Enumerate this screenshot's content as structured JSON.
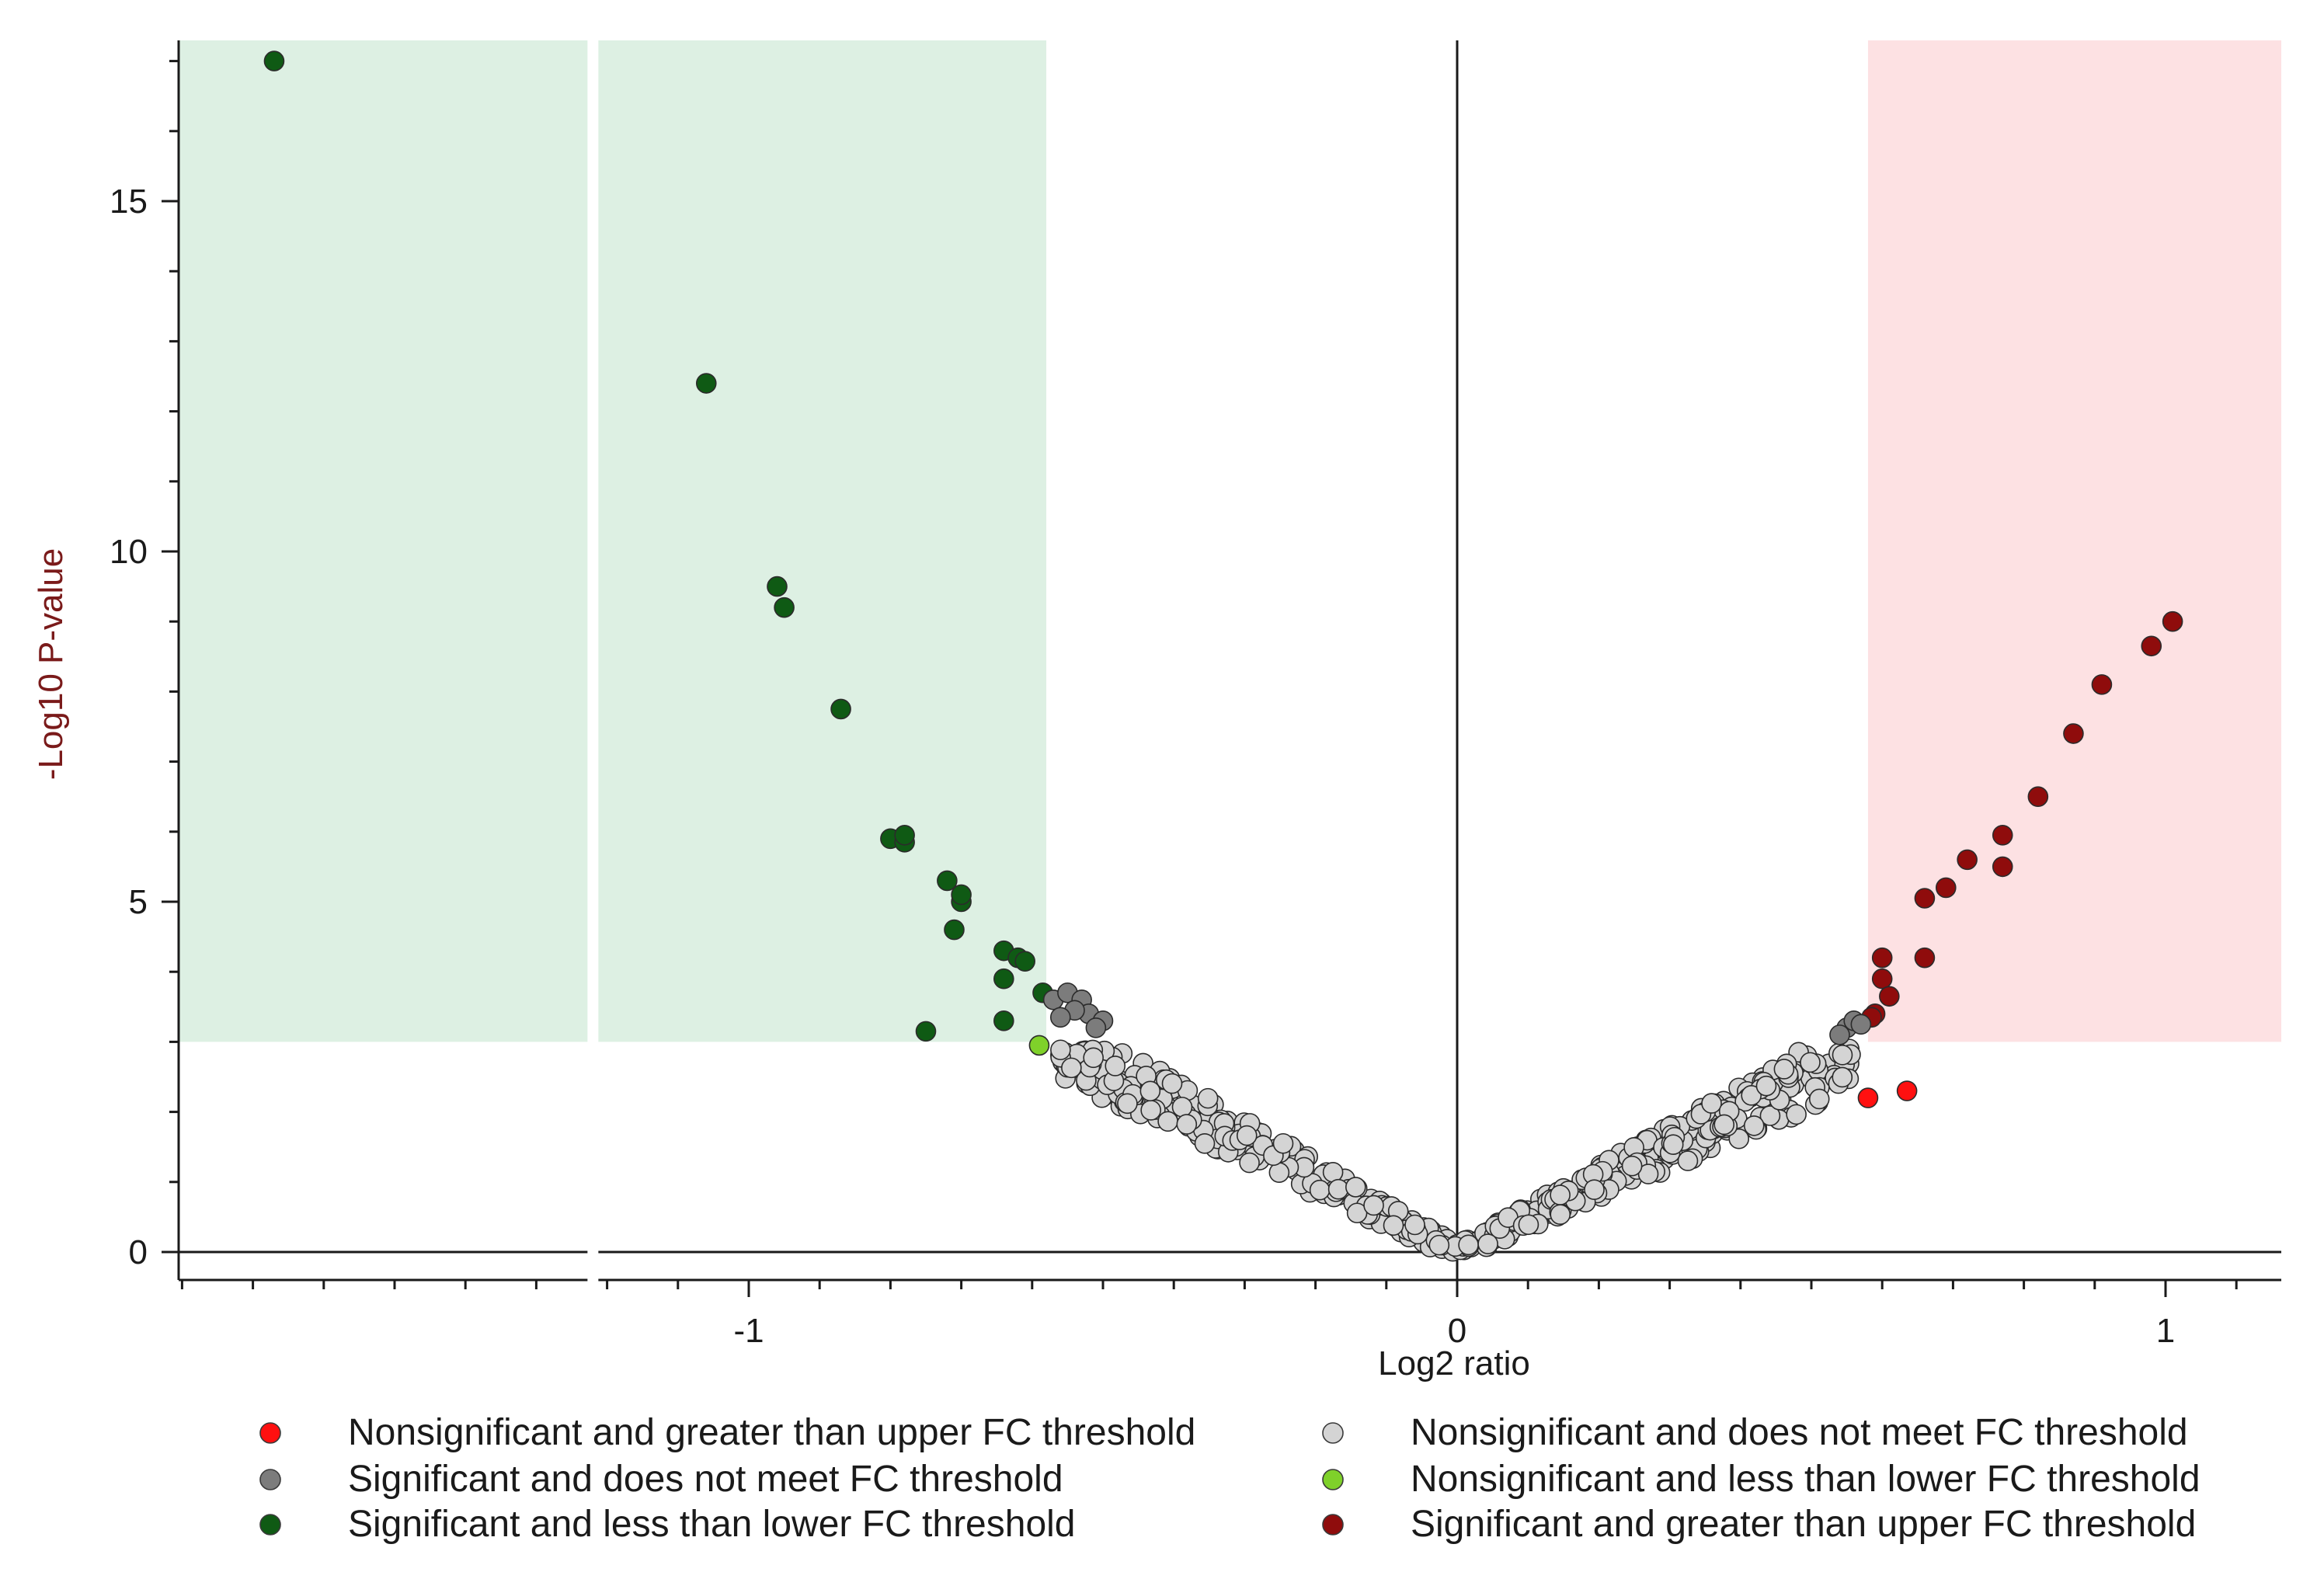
{
  "chart_data": {
    "type": "scatter",
    "title": "",
    "xlabel": "Log2 ratio",
    "ylabel": "-Log10 P-value",
    "xlim": [
      -1.81,
      1.17
    ],
    "ylim": [
      -0.4,
      17.3
    ],
    "x_ticks": [
      -1,
      0,
      1
    ],
    "y_ticks": [
      0,
      5,
      10,
      15
    ],
    "x_tick_labels": [
      "-1",
      "0",
      "1"
    ],
    "y_tick_labels": [
      "0",
      "5",
      "10",
      "15"
    ],
    "grid": false,
    "axis_break_x": -1.22,
    "regions": [
      {
        "name": "lower-fc-significant-region",
        "x": [
          -1.81,
          -0.58
        ],
        "y": [
          3,
          17.3
        ],
        "color": "#ddf0e3"
      },
      {
        "name": "upper-fc-significant-region",
        "x": [
          0.58,
          1.17
        ],
        "y": [
          3,
          17.3
        ],
        "color": "#fde1e3"
      }
    ],
    "colors": {
      "sig_down": "#0f5a14",
      "sig_up": "#8f0c0c",
      "sig_nofc": "#7c7c7c",
      "nonsig_nofc": "#d4d4d4",
      "nonsig_up": "#ff1010",
      "nonsig_down": "#7fd12a"
    },
    "legend_position": "bottom",
    "legend": [
      {
        "label": "Nonsignificant and greater than upper FC threshold",
        "color": "#ff1010"
      },
      {
        "label": "Significant and does not meet FC threshold",
        "color": "#7c7c7c"
      },
      {
        "label": "Significant and less than lower FC threshold",
        "color": "#0f5a14"
      },
      {
        "label": "Nonsignificant and does not meet FC threshold",
        "color": "#d4d4d4"
      },
      {
        "label": "Nonsignificant and less than lower FC threshold",
        "color": "#7fd12a"
      },
      {
        "label": "Significant and greater than upper FC threshold",
        "color": "#8f0c0c"
      }
    ],
    "series": [
      {
        "name": "Significant and less than lower FC threshold",
        "color_key": "sig_down",
        "points": [
          [
            -1.67,
            17.0
          ],
          [
            -1.06,
            12.4
          ],
          [
            -0.96,
            9.5
          ],
          [
            -0.95,
            9.2
          ],
          [
            -0.87,
            7.75
          ],
          [
            -0.8,
            5.9
          ],
          [
            -0.78,
            5.85
          ],
          [
            -0.78,
            5.95
          ],
          [
            -0.72,
            5.3
          ],
          [
            -0.7,
            5.0
          ],
          [
            -0.7,
            5.1
          ],
          [
            -0.71,
            4.6
          ],
          [
            -0.64,
            4.3
          ],
          [
            -0.62,
            4.2
          ],
          [
            -0.61,
            4.15
          ],
          [
            -0.64,
            3.9
          ],
          [
            -0.64,
            3.3
          ],
          [
            -0.75,
            3.15
          ],
          [
            -0.585,
            3.7
          ]
        ]
      },
      {
        "name": "Significant and greater than upper FC threshold",
        "color_key": "sig_up",
        "points": [
          [
            1.01,
            9.0
          ],
          [
            0.98,
            8.65
          ],
          [
            0.91,
            8.1
          ],
          [
            0.87,
            7.4
          ],
          [
            0.82,
            6.5
          ],
          [
            0.77,
            5.95
          ],
          [
            0.77,
            5.5
          ],
          [
            0.72,
            5.6
          ],
          [
            0.69,
            5.2
          ],
          [
            0.66,
            5.05
          ],
          [
            0.66,
            4.2
          ],
          [
            0.6,
            4.2
          ],
          [
            0.6,
            3.9
          ],
          [
            0.61,
            3.65
          ],
          [
            0.59,
            3.4
          ],
          [
            0.585,
            3.35
          ]
        ]
      },
      {
        "name": "Significant and does not meet FC threshold",
        "color_key": "sig_nofc",
        "points": [
          [
            -0.57,
            3.6
          ],
          [
            -0.55,
            3.7
          ],
          [
            -0.53,
            3.6
          ],
          [
            -0.52,
            3.4
          ],
          [
            -0.5,
            3.3
          ],
          [
            -0.54,
            3.45
          ],
          [
            -0.56,
            3.35
          ],
          [
            -0.51,
            3.2
          ],
          [
            0.55,
            3.2
          ],
          [
            0.56,
            3.3
          ],
          [
            0.57,
            3.25
          ],
          [
            0.54,
            3.1
          ]
        ]
      },
      {
        "name": "Nonsignificant and greater than upper FC threshold",
        "color_key": "nonsig_up",
        "points": [
          [
            0.58,
            2.2
          ],
          [
            0.635,
            2.3
          ]
        ]
      },
      {
        "name": "Nonsignificant and less than lower FC threshold",
        "color_key": "nonsig_down",
        "points": [
          [
            -0.59,
            2.95
          ]
        ]
      }
    ]
  }
}
